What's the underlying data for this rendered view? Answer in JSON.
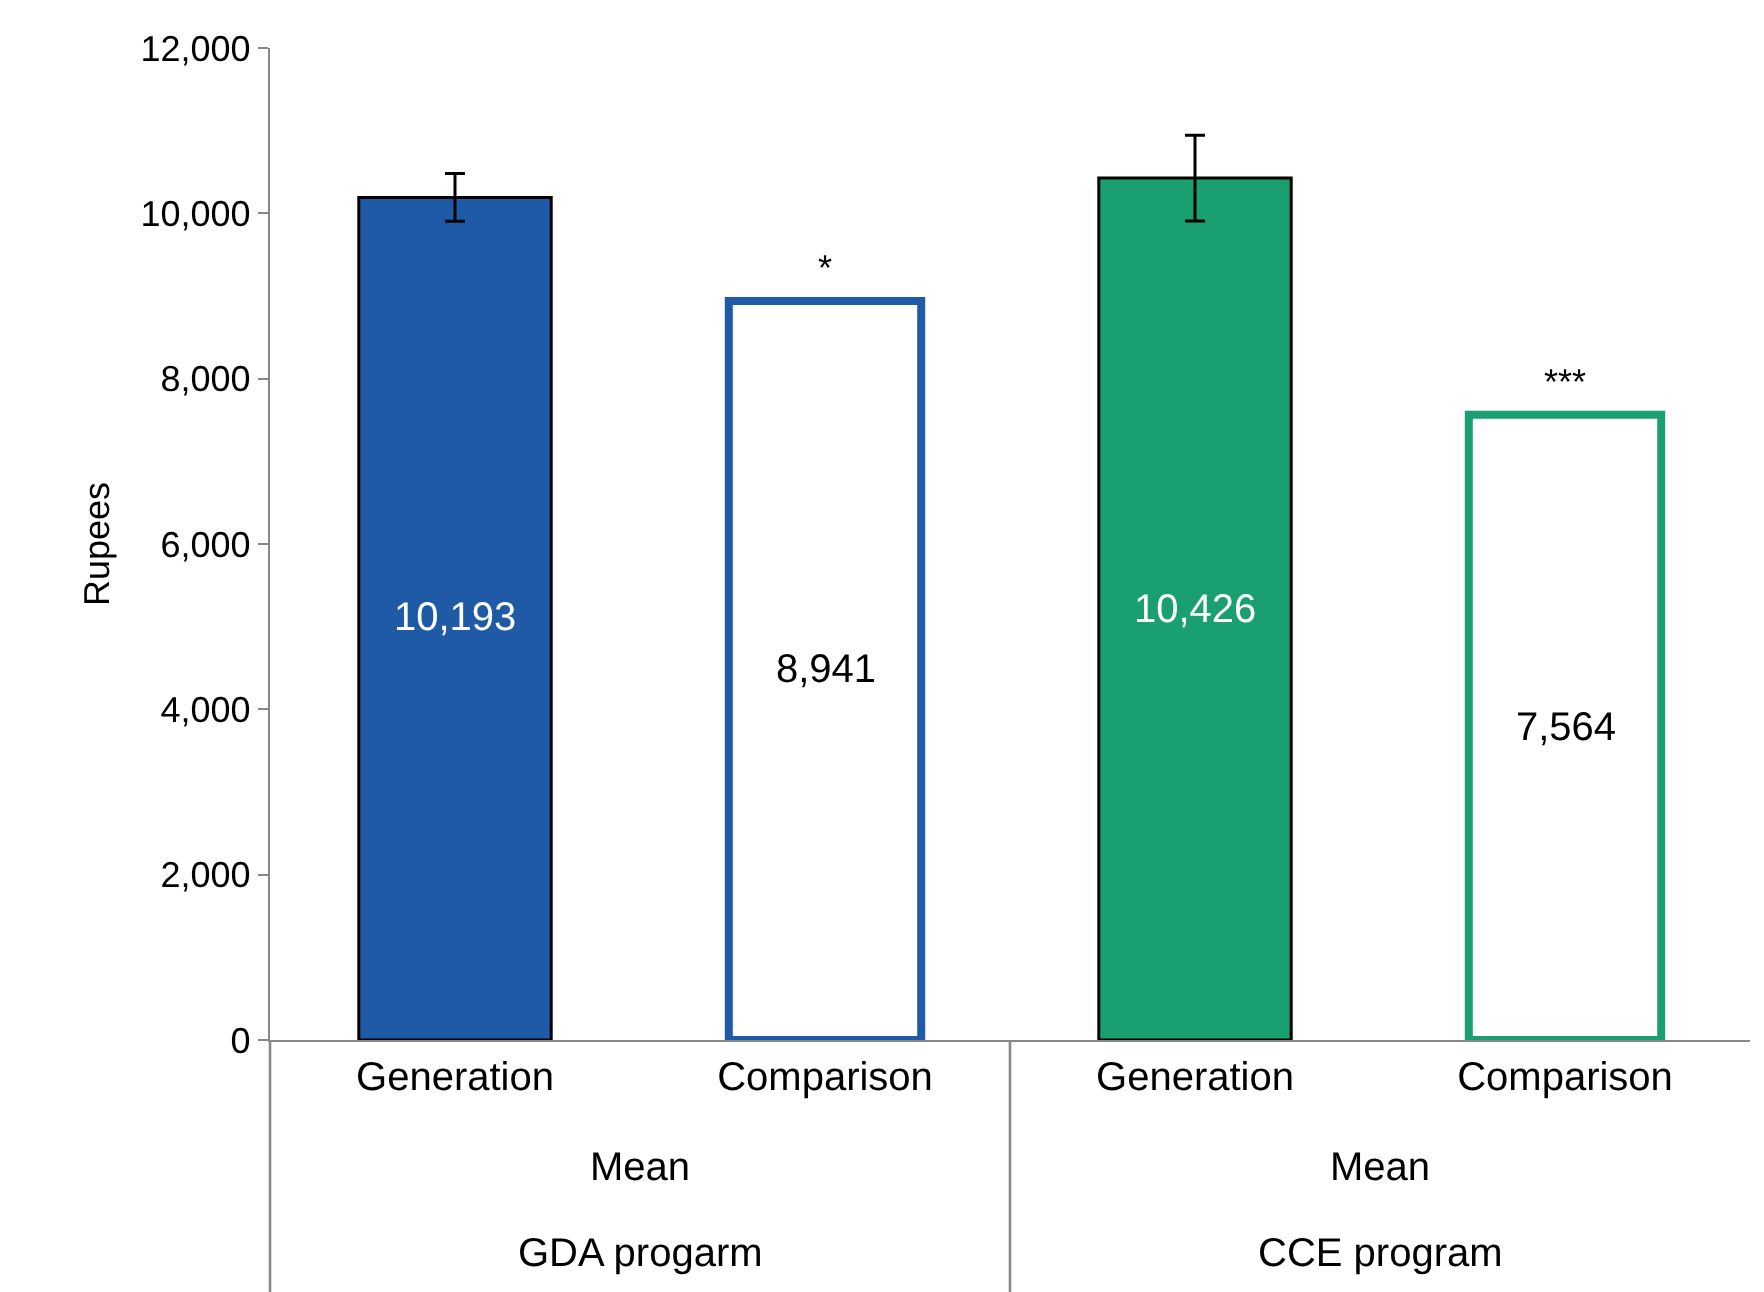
{
  "chart_data": {
    "type": "bar",
    "ylabel": "Rupees",
    "categories": [
      "Generation",
      "Comparison",
      "Generation",
      "Comparison"
    ],
    "series": [
      {
        "values": [
          10193,
          null,
          10426,
          null
        ],
        "colors": [
          "#1f5aa6",
          null,
          "#1aa070",
          null
        ],
        "errors": [
          290,
          null,
          520,
          null
        ]
      },
      {
        "values": [
          null,
          8941,
          null,
          7564
        ],
        "colors": [
          null,
          "#1f5aa6",
          null,
          "#1aa070"
        ]
      }
    ],
    "ylim": [
      0,
      12000
    ],
    "yticks": [
      0,
      {
        "value": 2000,
        "label": "2,000"
      },
      {
        "value": 4000,
        "label": "4,000"
      },
      {
        "value": 6000,
        "label": "6,000"
      },
      {
        "value": 8000,
        "label": "8,000"
      },
      {
        "value": 10000,
        "label": "10,000"
      },
      {
        "value": 12000,
        "label": "12,000"
      }
    ],
    "value_labels": [
      "10,193",
      "8,941",
      "10,426",
      "7,564"
    ],
    "annotations": [
      "Mean",
      "Mean",
      "GDA progarm",
      "CCE program",
      "*",
      "***"
    ],
    "grid": false
  }
}
